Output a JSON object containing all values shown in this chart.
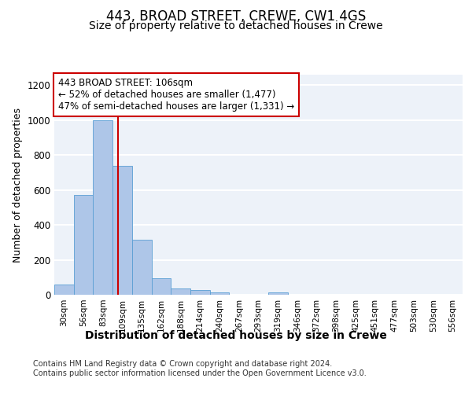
{
  "title": "443, BROAD STREET, CREWE, CW1 4GS",
  "subtitle": "Size of property relative to detached houses in Crewe",
  "xlabel": "Distribution of detached houses by size in Crewe",
  "ylabel": "Number of detached properties",
  "bar_color": "#aec6e8",
  "bar_edge_color": "#5a9fd4",
  "categories": [
    "30sqm",
    "56sqm",
    "83sqm",
    "109sqm",
    "135sqm",
    "162sqm",
    "188sqm",
    "214sqm",
    "240sqm",
    "267sqm",
    "293sqm",
    "319sqm",
    "346sqm",
    "372sqm",
    "398sqm",
    "425sqm",
    "451sqm",
    "477sqm",
    "503sqm",
    "530sqm",
    "556sqm"
  ],
  "values": [
    60,
    570,
    1000,
    740,
    315,
    95,
    35,
    25,
    12,
    0,
    0,
    12,
    0,
    0,
    0,
    0,
    0,
    0,
    0,
    0,
    0
  ],
  "ylim": [
    0,
    1260
  ],
  "yticks": [
    0,
    200,
    400,
    600,
    800,
    1000,
    1200
  ],
  "property_line_x": 2.77,
  "annotation_text": "443 BROAD STREET: 106sqm\n← 52% of detached houses are smaller (1,477)\n47% of semi-detached houses are larger (1,331) →",
  "annotation_box_color": "#ffffff",
  "annotation_box_edgecolor": "#cc0000",
  "vline_color": "#cc0000",
  "background_color": "#edf2f9",
  "footer_text": "Contains HM Land Registry data © Crown copyright and database right 2024.\nContains public sector information licensed under the Open Government Licence v3.0.",
  "grid_color": "#ffffff",
  "title_fontsize": 12,
  "subtitle_fontsize": 10,
  "xlabel_fontsize": 10,
  "ylabel_fontsize": 9,
  "tick_fontsize": 7.5,
  "annotation_fontsize": 8.5,
  "footer_fontsize": 7
}
